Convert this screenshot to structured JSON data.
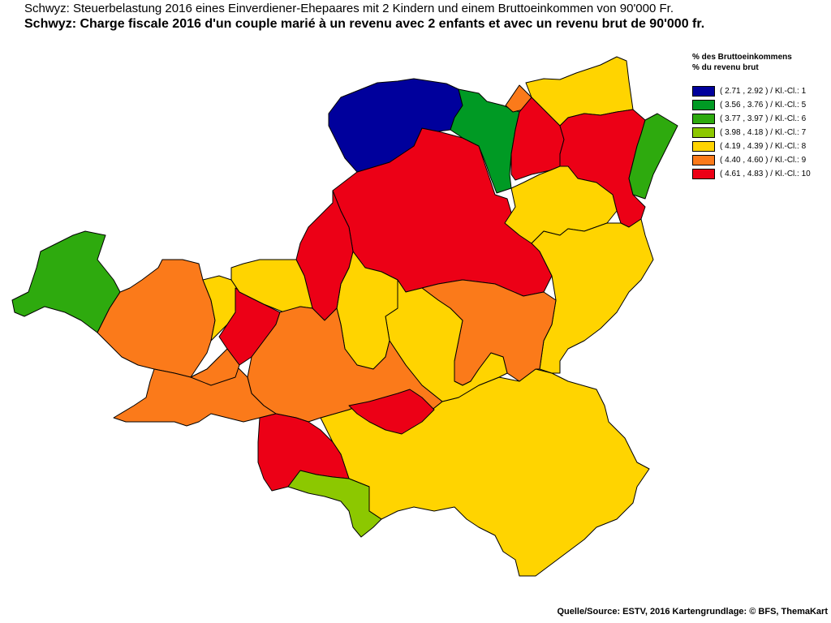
{
  "title": {
    "de": "Schwyz: Steuerbelastung 2016 eines Einverdiener-Ehepaares mit 2 Kindern und einem Bruttoeinkommen von 90'000 Fr.",
    "fr": "Schwyz: Charge fiscale 2016 d'un couple marié à un revenu avec 2 enfants et avec un revenu brut de 90'000 fr."
  },
  "legend": {
    "heading_de": "% des Bruttoeinkommens",
    "heading_fr": "% du revenu brut",
    "classes": [
      {
        "label": "( 2.71 , 2.92 ) / Kl.-Cl.: 1",
        "color": "#00009c"
      },
      {
        "label": "( 3.56 , 3.76 ) / Kl.-Cl.: 5",
        "color": "#009a24"
      },
      {
        "label": "( 3.77 , 3.97 ) / Kl.-Cl.: 6",
        "color": "#2eaa0e"
      },
      {
        "label": "( 3.98 , 4.18 ) / Kl.-Cl.: 7",
        "color": "#8cc800"
      },
      {
        "label": "( 4.19 , 4.39 ) / Kl.-Cl.: 8",
        "color": "#ffd400"
      },
      {
        "label": "( 4.40 , 4.60 ) / Kl.-Cl.: 9",
        "color": "#fb7a1a"
      },
      {
        "label": "( 4.61 , 4.83 ) / Kl.-Cl.: 10",
        "color": "#ec0016"
      }
    ]
  },
  "map": {
    "regions": [
      {
        "class": 8
      },
      {
        "class": 10
      },
      {
        "class": 1
      },
      {
        "class": 5
      },
      {
        "class": 9
      },
      {
        "class": 8
      },
      {
        "class": 10
      },
      {
        "class": 10
      },
      {
        "class": 6
      },
      {
        "class": 8
      },
      {
        "class": 8
      },
      {
        "class": 9
      },
      {
        "class": 8
      },
      {
        "class": 8
      },
      {
        "class": 10
      },
      {
        "class": 6
      },
      {
        "class": 9
      },
      {
        "class": 8
      },
      {
        "class": 10
      },
      {
        "class": 8
      },
      {
        "class": 9
      },
      {
        "class": 9
      },
      {
        "class": 10
      },
      {
        "class": 9
      },
      {
        "class": 10
      },
      {
        "class": 7
      }
    ]
  },
  "source": "Quelle/Source: ESTV, 2016 Kartengrundlage: © BFS, ThemaKart"
}
